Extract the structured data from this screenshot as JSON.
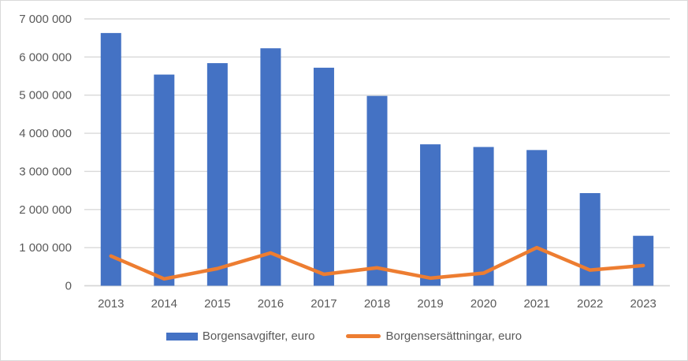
{
  "colors": {
    "background": "#FFFFFF",
    "frame_border": "#D9D9D9",
    "gridline": "#D9D9D9",
    "zero_axis": "#D6D6D6",
    "text": "#595959"
  },
  "chart_data": {
    "type": "bar",
    "subtype": "combo-bar-line",
    "title": "",
    "xlabel": "",
    "ylabel": "",
    "categories": [
      "2013",
      "2014",
      "2015",
      "2016",
      "2017",
      "2018",
      "2019",
      "2020",
      "2021",
      "2022",
      "2023"
    ],
    "series": [
      {
        "name": "Borgensavgifter, euro",
        "type": "bar",
        "color": "#4472C4",
        "values": [
          6630000,
          5540000,
          5840000,
          6230000,
          5720000,
          4980000,
          3710000,
          3640000,
          3560000,
          2430000,
          1310000
        ]
      },
      {
        "name": "Borgensersättningar, euro",
        "type": "line",
        "color": "#ED7D31",
        "values": [
          780000,
          180000,
          450000,
          860000,
          300000,
          470000,
          200000,
          330000,
          1000000,
          410000,
          530000
        ]
      }
    ],
    "ylim": [
      0,
      7000000
    ],
    "y_ticks": [
      0,
      1000000,
      2000000,
      3000000,
      4000000,
      5000000,
      6000000,
      7000000
    ],
    "y_tick_labels": [
      "0",
      "1 000 000",
      "2 000 000",
      "3 000 000",
      "4 000 000",
      "5 000 000",
      "6 000 000",
      "7 000 000"
    ],
    "grid": "horizontal",
    "legend_position": "bottom"
  }
}
